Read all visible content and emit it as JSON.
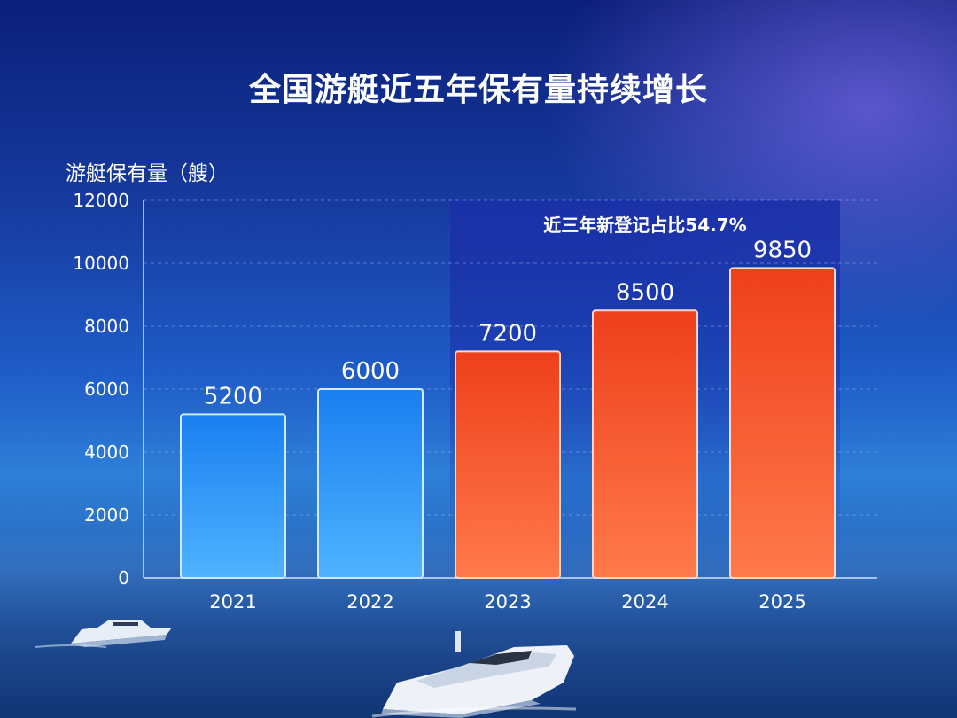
{
  "title": "全国游艇近五年保有量持续增长",
  "ylabel": "游艇保有量（艘）",
  "chart_data": {
    "type": "bar",
    "title": "全国游艇近五年保有量持续增长",
    "xlabel": "",
    "ylabel": "游艇保有量（艘）",
    "categories": [
      "2021",
      "2022",
      "2023",
      "2024",
      "2025"
    ],
    "values": [
      5200,
      6000,
      7200,
      8500,
      9850
    ],
    "ylim": [
      0,
      12000
    ],
    "yticks": [
      "0",
      "2000",
      "4000",
      "6000",
      "8000",
      "10000",
      "12000"
    ],
    "grid": true,
    "annotation": "近三年新登记占比54.7%",
    "colors": {
      "early": "#1f8bf0",
      "recent": "#f0582e",
      "highlight": "#1a2fa8"
    }
  }
}
